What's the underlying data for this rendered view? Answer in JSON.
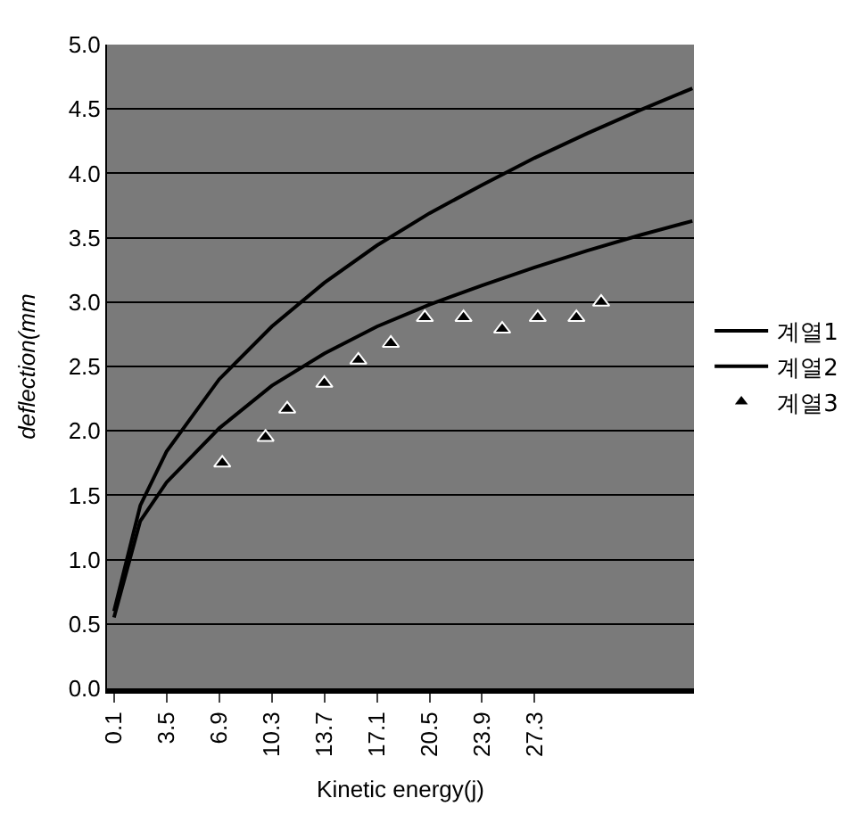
{
  "chart_data": {
    "type": "line",
    "xlabel": "Kinetic energy(j)",
    "ylabel": "deflection(mm",
    "xlim": [
      -0.35,
      37.6
    ],
    "xticks": [
      0.1,
      3.5,
      6.9,
      10.3,
      13.7,
      17.1,
      20.5,
      23.9,
      27.3
    ],
    "ylim": [
      0,
      5
    ],
    "yticks": [
      {
        "value": 0,
        "label": "0.0"
      },
      {
        "value": 0.5,
        "label": "0.5"
      },
      {
        "value": 1,
        "label": "1.0"
      },
      {
        "value": 1.5,
        "label": "1.5"
      },
      {
        "value": 2,
        "label": "2.0"
      },
      {
        "value": 2.5,
        "label": "2.5"
      },
      {
        "value": 3,
        "label": "3.0"
      },
      {
        "value": 3.5,
        "label": "3.5"
      },
      {
        "value": 4,
        "label": "4.0"
      },
      {
        "value": 4.5,
        "label": "4.5"
      },
      {
        "value": 5,
        "label": "5.0"
      }
    ],
    "grid": "y",
    "legend": "right",
    "series": [
      {
        "name": "계열1",
        "color": "#000000",
        "x": [
          0.1,
          1.8,
          3.5,
          6.9,
          10.3,
          13.7,
          17.1,
          20.5,
          23.9,
          27.3,
          30.7,
          34.1,
          37.5
        ],
        "values": [
          0.6,
          1.42,
          1.84,
          2.4,
          2.81,
          3.15,
          3.44,
          3.69,
          3.91,
          4.12,
          4.31,
          4.49,
          4.66
        ]
      },
      {
        "name": "계열2",
        "color": "#000000",
        "x": [
          0.1,
          1.8,
          3.5,
          6.9,
          10.3,
          13.7,
          17.1,
          20.5,
          23.9,
          27.3,
          30.7,
          34.1,
          37.5
        ],
        "values": [
          0.55,
          1.3,
          1.6,
          2.02,
          2.35,
          2.6,
          2.81,
          2.98,
          3.13,
          3.27,
          3.4,
          3.52,
          3.63
        ]
      },
      {
        "name": "계열3",
        "type": "scatter",
        "marker": "triangle",
        "color": "#000000",
        "x": [
          7.1,
          9.9,
          11.3,
          13.7,
          15.9,
          18.0,
          20.2,
          22.7,
          25.2,
          27.5,
          30.0,
          31.6
        ],
        "values": [
          1.75,
          1.95,
          2.17,
          2.37,
          2.55,
          2.68,
          2.88,
          2.88,
          2.79,
          2.88,
          2.88,
          3.0
        ]
      }
    ]
  }
}
